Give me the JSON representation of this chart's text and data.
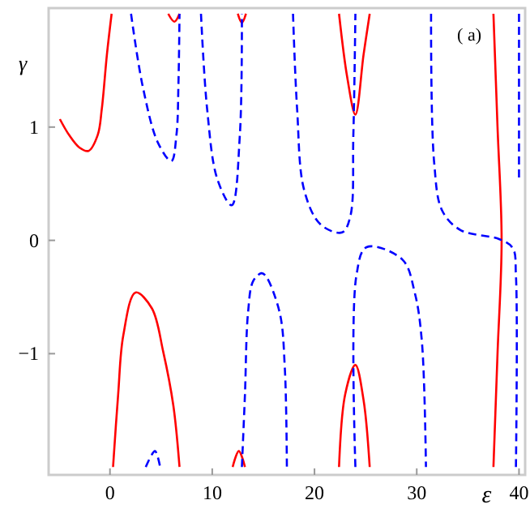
{
  "chart_data": {
    "type": "line",
    "xlabel": "ε",
    "ylabel": "γ",
    "annotations": [
      "( a)"
    ],
    "xlim": [
      -6,
      40.6
    ],
    "ylim": [
      -2.07,
      2.05
    ],
    "xticks": [
      0,
      10,
      20,
      30,
      40
    ],
    "yticks": [
      -1,
      0,
      1
    ],
    "grid": false,
    "marker": "none",
    "series": [
      {
        "color": "#ff0000",
        "line_style": "solid",
        "x": [
          -4.9,
          -4,
          -3,
          -2.1,
          -1.2,
          -0.8,
          -0.3,
          0.16,
          null,
          5.7,
          6.3,
          6.8,
          null,
          12.5,
          12.9,
          13.3,
          null,
          22.4,
          23.2,
          24.0,
          24.8,
          25.4,
          null,
          37.5,
          37.9,
          38.3,
          37.9,
          37.5,
          null,
          0.3,
          0.8,
          1.3,
          2.5,
          4.1,
          5.2,
          6.2,
          6.8,
          null,
          12.0,
          12.6,
          13.2,
          null,
          22.4,
          23.0,
          24.0,
          24.8,
          25.4
        ],
        "values": [
          1.07,
          0.93,
          0.82,
          0.79,
          0.93,
          1.16,
          1.64,
          2.0,
          null,
          2.0,
          1.93,
          2.0,
          null,
          2.0,
          1.92,
          2.0,
          null,
          2.0,
          1.44,
          1.11,
          1.64,
          2.0,
          null,
          2.0,
          1.0,
          0,
          -1.0,
          -2.0,
          null,
          -2.0,
          -1.36,
          -0.84,
          -0.46,
          -0.6,
          -0.98,
          -1.46,
          -2.0,
          null,
          -2.0,
          -1.86,
          -2.0,
          null,
          -2.0,
          -1.36,
          -1.1,
          -1.41,
          -2.0
        ]
      },
      {
        "color": "#0000ff",
        "line_style": "dashed",
        "x": [
          2.06,
          3.2,
          4.7,
          6.0,
          6.5,
          6.7,
          6.8,
          null,
          8.9,
          9.5,
          10.5,
          11.9,
          12.7,
          12.9,
          null,
          17.9,
          18.3,
          19.0,
          20.6,
          22.7,
          23.5,
          23.8,
          24.0,
          null,
          31.4,
          31.7,
          32.5,
          34.3,
          38.1,
          39.4,
          39.7,
          39.7,
          null,
          40.0,
          40.0,
          null,
          12.9,
          13.2,
          13.5,
          14.0,
          14.8,
          15.2,
          16.6,
          17.1,
          17.3,
          null,
          24.0,
          24.1,
          25.1,
          28.6,
          29.8,
          30.5,
          30.9,
          null,
          3.5,
          4.4,
          4.9
        ],
        "values": [
          2.0,
          1.36,
          0.86,
          0.7,
          0.93,
          1.4,
          2.0,
          null,
          2.0,
          1.16,
          0.54,
          0.31,
          0.93,
          2.0,
          null,
          2.0,
          1.16,
          0.44,
          0.14,
          0.07,
          0.21,
          0.93,
          2.0,
          null,
          2.0,
          0.69,
          0.26,
          0.09,
          0.01,
          -0.07,
          -0.31,
          -2.0,
          null,
          2.0,
          0.54,
          null,
          -2.0,
          -1.36,
          -0.64,
          -0.36,
          -0.29,
          -0.31,
          -0.64,
          -1.13,
          -2.0,
          null,
          -2.0,
          -0.31,
          -0.06,
          -0.17,
          -0.46,
          -0.89,
          -2.0,
          null,
          -2.0,
          -1.86,
          -2.0
        ]
      }
    ]
  }
}
